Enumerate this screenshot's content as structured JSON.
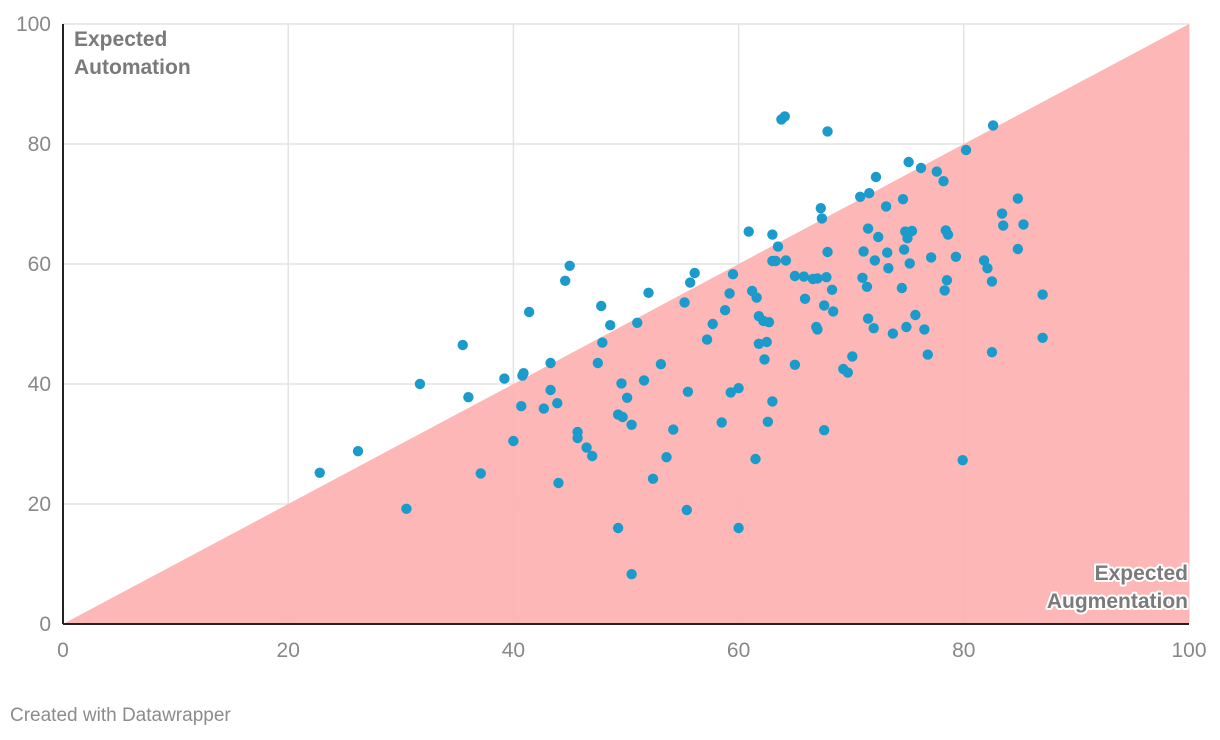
{
  "chart_data": {
    "type": "scatter",
    "title": "",
    "xlabel": "",
    "ylabel": "",
    "xlim": [
      0,
      100
    ],
    "ylim": [
      0,
      100
    ],
    "x_ticks": [
      0,
      20,
      40,
      60,
      80,
      100
    ],
    "y_ticks": [
      0,
      20,
      40,
      60,
      80,
      100
    ],
    "grid": true,
    "annotations": {
      "upper_region": [
        "Expected",
        "Automation"
      ],
      "lower_region": [
        "Expected",
        "Augmentation"
      ]
    },
    "shaded_region": "below diagonal y = x",
    "colors": {
      "points": "#1a9bcb",
      "region": "#fdb3b2",
      "grid": "#e3e3e3",
      "axis": "#222222"
    },
    "points": [
      [
        22.8,
        25.2
      ],
      [
        26.2,
        28.8
      ],
      [
        30.5,
        19.2
      ],
      [
        31.7,
        40.0
      ],
      [
        35.5,
        46.5
      ],
      [
        36.0,
        37.8
      ],
      [
        37.1,
        25.1
      ],
      [
        39.2,
        40.9
      ],
      [
        40.0,
        30.5
      ],
      [
        40.7,
        36.3
      ],
      [
        40.8,
        41.4
      ],
      [
        40.9,
        41.8
      ],
      [
        41.4,
        52.0
      ],
      [
        42.7,
        35.9
      ],
      [
        43.3,
        39.0
      ],
      [
        43.3,
        43.5
      ],
      [
        43.9,
        36.8
      ],
      [
        44.0,
        23.5
      ],
      [
        44.6,
        57.2
      ],
      [
        45.0,
        59.7
      ],
      [
        45.7,
        31.0
      ],
      [
        45.7,
        32.0
      ],
      [
        46.5,
        29.4
      ],
      [
        47.0,
        28.0
      ],
      [
        47.5,
        43.5
      ],
      [
        47.8,
        53.0
      ],
      [
        47.9,
        46.9
      ],
      [
        48.6,
        49.8
      ],
      [
        49.3,
        16.0
      ],
      [
        49.3,
        34.9
      ],
      [
        49.6,
        40.1
      ],
      [
        49.7,
        34.5
      ],
      [
        50.1,
        37.7
      ],
      [
        50.5,
        8.3
      ],
      [
        50.5,
        33.2
      ],
      [
        51.0,
        50.2
      ],
      [
        51.6,
        40.6
      ],
      [
        52.0,
        55.2
      ],
      [
        52.4,
        24.2
      ],
      [
        53.1,
        43.3
      ],
      [
        53.6,
        27.8
      ],
      [
        54.2,
        32.4
      ],
      [
        55.2,
        53.6
      ],
      [
        55.4,
        19.0
      ],
      [
        55.5,
        38.7
      ],
      [
        55.7,
        56.9
      ],
      [
        56.1,
        58.5
      ],
      [
        57.2,
        47.4
      ],
      [
        57.7,
        50.0
      ],
      [
        58.5,
        33.6
      ],
      [
        58.8,
        52.3
      ],
      [
        59.2,
        55.1
      ],
      [
        59.3,
        38.6
      ],
      [
        59.5,
        58.3
      ],
      [
        60.0,
        16.0
      ],
      [
        60.0,
        39.3
      ],
      [
        60.9,
        65.4
      ],
      [
        61.2,
        55.5
      ],
      [
        61.5,
        27.5
      ],
      [
        61.6,
        54.4
      ],
      [
        61.8,
        46.7
      ],
      [
        61.8,
        51.3
      ],
      [
        62.2,
        50.5
      ],
      [
        62.3,
        44.1
      ],
      [
        62.5,
        47.0
      ],
      [
        62.6,
        33.7
      ],
      [
        62.7,
        50.3
      ],
      [
        63.0,
        60.5
      ],
      [
        63.0,
        64.9
      ],
      [
        63.0,
        37.1
      ],
      [
        63.3,
        60.5
      ],
      [
        63.5,
        62.9
      ],
      [
        63.8,
        84.1
      ],
      [
        64.1,
        84.6
      ],
      [
        64.2,
        60.6
      ],
      [
        65.0,
        58.0
      ],
      [
        65.0,
        43.2
      ],
      [
        65.8,
        57.9
      ],
      [
        65.9,
        54.2
      ],
      [
        66.6,
        57.5
      ],
      [
        66.9,
        49.5
      ],
      [
        67.0,
        57.6
      ],
      [
        67.0,
        49.1
      ],
      [
        67.3,
        69.3
      ],
      [
        67.4,
        67.6
      ],
      [
        67.6,
        32.3
      ],
      [
        67.6,
        53.1
      ],
      [
        67.8,
        57.8
      ],
      [
        67.9,
        82.1
      ],
      [
        67.9,
        62.0
      ],
      [
        68.3,
        55.7
      ],
      [
        68.4,
        52.1
      ],
      [
        69.3,
        42.5
      ],
      [
        69.7,
        41.9
      ],
      [
        70.1,
        44.6
      ],
      [
        70.8,
        71.2
      ],
      [
        71.0,
        57.7
      ],
      [
        71.1,
        62.1
      ],
      [
        71.4,
        56.2
      ],
      [
        71.5,
        50.9
      ],
      [
        71.5,
        65.9
      ],
      [
        71.6,
        71.8
      ],
      [
        72.0,
        49.3
      ],
      [
        72.1,
        60.6
      ],
      [
        72.2,
        74.5
      ],
      [
        72.4,
        64.5
      ],
      [
        73.1,
        69.6
      ],
      [
        73.2,
        61.9
      ],
      [
        73.3,
        59.3
      ],
      [
        73.7,
        48.4
      ],
      [
        74.5,
        56.0
      ],
      [
        74.6,
        70.8
      ],
      [
        74.7,
        62.4
      ],
      [
        74.8,
        65.4
      ],
      [
        74.9,
        49.5
      ],
      [
        75.0,
        64.3
      ],
      [
        75.1,
        77.0
      ],
      [
        75.2,
        60.1
      ],
      [
        75.4,
        65.5
      ],
      [
        75.7,
        51.5
      ],
      [
        76.2,
        76.0
      ],
      [
        76.5,
        49.1
      ],
      [
        76.8,
        44.9
      ],
      [
        77.1,
        61.1
      ],
      [
        77.6,
        75.4
      ],
      [
        78.2,
        73.8
      ],
      [
        78.3,
        55.6
      ],
      [
        78.4,
        65.6
      ],
      [
        78.5,
        57.3
      ],
      [
        78.6,
        64.9
      ],
      [
        79.3,
        61.2
      ],
      [
        79.9,
        27.3
      ],
      [
        80.2,
        79.0
      ],
      [
        81.8,
        60.6
      ],
      [
        82.1,
        59.3
      ],
      [
        82.5,
        57.1
      ],
      [
        82.5,
        45.3
      ],
      [
        82.6,
        83.1
      ],
      [
        83.4,
        68.4
      ],
      [
        83.5,
        66.4
      ],
      [
        84.8,
        70.9
      ],
      [
        84.8,
        62.5
      ],
      [
        85.3,
        66.6
      ],
      [
        87.0,
        54.9
      ],
      [
        87.0,
        47.7
      ]
    ]
  },
  "footer": {
    "credit": "Created with Datawrapper"
  }
}
